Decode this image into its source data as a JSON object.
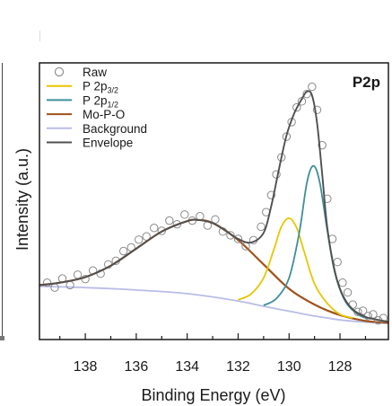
{
  "chart_data": {
    "type": "line",
    "panel_label": "P2p",
    "xlabel": "Binding Energy (eV)",
    "ylabel": "Intensity (a.u.)",
    "xlim": [
      139.8,
      126.1
    ],
    "xticks": [
      138,
      136,
      134,
      132,
      130,
      128
    ],
    "x_reversed": true,
    "y_ticks_shown": false,
    "grid": false,
    "legend_position": "top-left",
    "legend": [
      {
        "label": "Raw",
        "sub": "",
        "marker": "circle",
        "color": "#8a8a8a"
      },
      {
        "label": "P 2p",
        "sub": "3/2",
        "marker": "line",
        "color": "#e8c600"
      },
      {
        "label": "P 2p",
        "sub": "1/2",
        "marker": "line",
        "color": "#3f8f98"
      },
      {
        "label": "Mo-P-O",
        "sub": "",
        "marker": "line",
        "color": "#a0521a"
      },
      {
        "label": "Background",
        "sub": "",
        "marker": "line",
        "color": "#b9bde8"
      },
      {
        "label": "Envelope",
        "sub": "",
        "marker": "line",
        "color": "#505050"
      }
    ],
    "series": [
      {
        "name": "Background",
        "color": "#b9bde8",
        "x": [
          139.8,
          138,
          136,
          134,
          132,
          131,
          130,
          129.5,
          129,
          128.5,
          128,
          127,
          126.1
        ],
        "y": [
          0.2,
          0.195,
          0.185,
          0.17,
          0.14,
          0.118,
          0.098,
          0.088,
          0.078,
          0.07,
          0.062,
          0.053,
          0.048
        ]
      },
      {
        "name": "Mo-P-O",
        "color": "#a0521a",
        "x": [
          139.8,
          139,
          138,
          137,
          136,
          135,
          134,
          133.6,
          133,
          132,
          131,
          130,
          129,
          128,
          127,
          126.1
        ],
        "y": [
          0.205,
          0.215,
          0.238,
          0.285,
          0.355,
          0.425,
          0.468,
          0.473,
          0.46,
          0.39,
          0.29,
          0.19,
          0.125,
          0.082,
          0.058,
          0.05
        ]
      },
      {
        "name": "P 2p3/2",
        "color": "#e8c600",
        "x": [
          132,
          131.5,
          131,
          130.6,
          130.3,
          130.0,
          129.7,
          129.4,
          129,
          128.5,
          128,
          127.5
        ],
        "y": [
          0.145,
          0.168,
          0.235,
          0.35,
          0.445,
          0.48,
          0.44,
          0.34,
          0.21,
          0.13,
          0.085,
          0.07
        ]
      },
      {
        "name": "P 2p1/2",
        "color": "#3f8f98",
        "x": [
          131,
          130.5,
          130,
          129.6,
          129.3,
          129.05,
          128.8,
          128.5,
          128.2,
          127.8,
          127.3,
          126.9
        ],
        "y": [
          0.122,
          0.15,
          0.235,
          0.42,
          0.625,
          0.695,
          0.63,
          0.43,
          0.255,
          0.14,
          0.085,
          0.068
        ]
      },
      {
        "name": "Envelope",
        "color": "#505050",
        "x": [
          139.8,
          139,
          138,
          137,
          136,
          135,
          134,
          133.6,
          133,
          132.5,
          132,
          131.5,
          131,
          130.7,
          130.4,
          130.1,
          129.8,
          129.5,
          129.3,
          129.1,
          128.9,
          128.7,
          128.5,
          128.2,
          127.9,
          127.5,
          127,
          126.5,
          126.1
        ],
        "y": [
          0.205,
          0.215,
          0.238,
          0.285,
          0.355,
          0.425,
          0.468,
          0.473,
          0.46,
          0.43,
          0.395,
          0.38,
          0.42,
          0.53,
          0.68,
          0.82,
          0.91,
          0.97,
          1.0,
          0.985,
          0.87,
          0.66,
          0.44,
          0.26,
          0.165,
          0.105,
          0.075,
          0.062,
          0.055
        ]
      },
      {
        "name": "Raw",
        "color": "#8a8a8a",
        "marker": "circle",
        "x": [
          139.5,
          139.2,
          138.9,
          138.6,
          138.3,
          138.0,
          137.7,
          137.4,
          137.1,
          136.8,
          136.5,
          136.2,
          135.9,
          135.6,
          135.3,
          135.0,
          134.7,
          134.4,
          134.1,
          133.8,
          133.5,
          133.2,
          132.9,
          132.6,
          132.3,
          132.0,
          131.7,
          131.4,
          131.1,
          130.9,
          130.7,
          130.5,
          130.3,
          130.1,
          129.9,
          129.7,
          129.5,
          129.3,
          129.1,
          128.9,
          128.7,
          128.5,
          128.3,
          128.1,
          127.9,
          127.7,
          127.5,
          127.3,
          127.1,
          126.9,
          126.7,
          126.5,
          126.3
        ],
        "y": [
          0.215,
          0.195,
          0.232,
          0.205,
          0.248,
          0.23,
          0.265,
          0.252,
          0.29,
          0.305,
          0.345,
          0.36,
          0.392,
          0.405,
          0.44,
          0.428,
          0.47,
          0.455,
          0.495,
          0.47,
          0.488,
          0.45,
          0.475,
          0.425,
          0.41,
          0.395,
          0.365,
          0.39,
          0.445,
          0.505,
          0.575,
          0.66,
          0.73,
          0.815,
          0.875,
          0.935,
          0.96,
          0.99,
          1.02,
          0.925,
          0.78,
          0.56,
          0.395,
          0.3,
          0.215,
          0.175,
          0.125,
          0.095,
          0.1,
          0.078,
          0.085,
          0.06,
          0.07
        ]
      }
    ]
  }
}
